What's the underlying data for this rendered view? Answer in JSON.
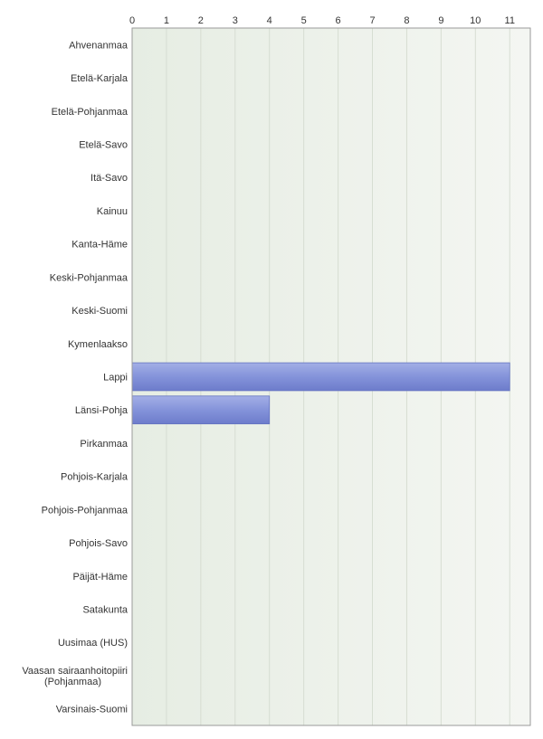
{
  "chart_data": {
    "type": "bar",
    "orientation": "horizontal",
    "categories": [
      "Ahvenanmaa",
      "Etelä-Karjala",
      "Etelä-Pohjanmaa",
      "Etelä-Savo",
      "Itä-Savo",
      "Kainuu",
      "Kanta-Häme",
      "Keski-Pohjanmaa",
      "Keski-Suomi",
      "Kymenlaakso",
      "Lappi",
      "Länsi-Pohja",
      "Pirkanmaa",
      "Pohjois-Karjala",
      "Pohjois-Pohjanmaa",
      "Pohjois-Savo",
      "Päijät-Häme",
      "Satakunta",
      "Uusimaa (HUS)",
      "Vaasan sairaanhoitopiiri\n(Pohjanmaa)",
      "Varsinais-Suomi"
    ],
    "values": [
      0,
      0,
      0,
      0,
      0,
      0,
      0,
      0,
      0,
      0,
      11,
      4,
      0,
      0,
      0,
      0,
      0,
      0,
      0,
      0,
      0
    ],
    "x_ticks": [
      "0",
      "1",
      "2",
      "3",
      "4",
      "5",
      "6",
      "7",
      "8",
      "9",
      "10",
      "11"
    ],
    "xlim": [
      0,
      11.6
    ],
    "x_axis_position": "top",
    "grid": true,
    "legend": "none",
    "bar_color": "#7f8ed6",
    "plot_background": "#eef2ea"
  }
}
